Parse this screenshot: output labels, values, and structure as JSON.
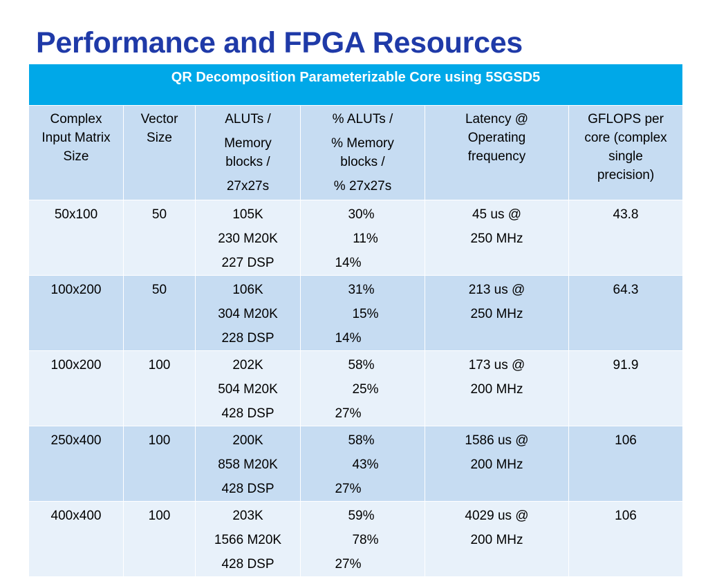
{
  "title": "Performance and FPGA Resources",
  "table": {
    "caption": "QR Decomposition Parameterizable Core using 5SGSD5",
    "headers": {
      "size": [
        "Complex",
        "Input Matrix",
        "Size"
      ],
      "vector": [
        "Vector",
        "Size"
      ],
      "aluts": [
        "ALUTs /",
        "Memory",
        "blocks /",
        "27x27s"
      ],
      "pct": [
        "% ALUTs /",
        "% Memory",
        "blocks /",
        "% 27x27s"
      ],
      "latency": [
        "Latency @",
        "Operating",
        "frequency"
      ],
      "gflops": [
        "GFLOPS per",
        "core (complex",
        "single",
        "precision)"
      ]
    },
    "rows": [
      {
        "size": "50x100",
        "vector": "50",
        "aluts": [
          "105K",
          "230 M20K",
          "227 DSP"
        ],
        "pct": [
          "30%",
          "11%",
          "14%"
        ],
        "latency": [
          "45 us @",
          "250 MHz"
        ],
        "gflops": "43.8"
      },
      {
        "size": "100x200",
        "vector": "50",
        "aluts": [
          "106K",
          "304 M20K",
          "228 DSP"
        ],
        "pct": [
          "31%",
          "15%",
          "14%"
        ],
        "latency": [
          "213 us @",
          "250 MHz"
        ],
        "gflops": "64.3"
      },
      {
        "size": "100x200",
        "vector": "100",
        "aluts": [
          "202K",
          "504 M20K",
          "428 DSP"
        ],
        "pct": [
          "58%",
          "25%",
          "27%"
        ],
        "latency": [
          "173 us @",
          "200 MHz"
        ],
        "gflops": "91.9"
      },
      {
        "size": "250x400",
        "vector": "100",
        "aluts": [
          "200K",
          "858 M20K",
          "428 DSP"
        ],
        "pct": [
          "58%",
          "43%",
          "27%"
        ],
        "latency": [
          "1586 us @",
          "200 MHz"
        ],
        "gflops": "106"
      },
      {
        "size": "400x400",
        "vector": "100",
        "aluts": [
          "203K",
          "1566 M20K",
          "428 DSP"
        ],
        "pct": [
          "59%",
          "78%",
          "27%"
        ],
        "latency": [
          "4029 us @",
          "200 MHz"
        ],
        "gflops": "106"
      }
    ]
  },
  "colors": {
    "title": "#1f3aa8",
    "caption_bg": "#00a8e8",
    "header_bg": "#c6dcf2",
    "row_light": "#e8f1fa",
    "row_dark": "#c6dcf2"
  }
}
